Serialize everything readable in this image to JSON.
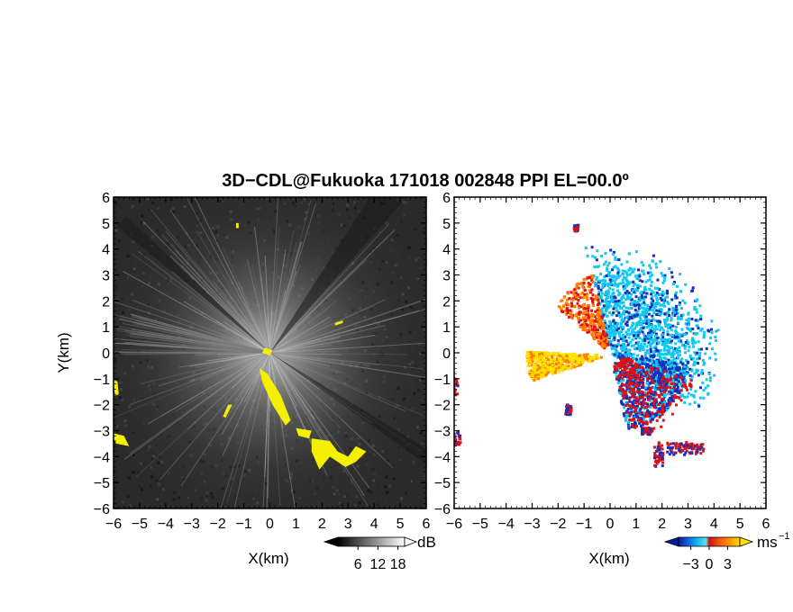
{
  "title": "3D−CDL@Fukuoka 171018 002848 PPI EL=00.0º",
  "chart_data": [
    {
      "type": "heatmap",
      "panel": "left",
      "quantity": "SNR",
      "xlabel": "X(km)",
      "ylabel": "Y(km)",
      "xlim": [
        -6,
        6
      ],
      "ylim": [
        -6,
        6
      ],
      "xticks": [
        "−6",
        "−5",
        "−4",
        "−3",
        "−2",
        "−1",
        "0",
        "1",
        "2",
        "3",
        "4",
        "5",
        "6"
      ],
      "yticks": [
        "6",
        "5",
        "4",
        "3",
        "2",
        "1",
        "0",
        "−1",
        "−2",
        "−3",
        "−4",
        "−5",
        "−6"
      ],
      "colorbar": {
        "colormap": "grayscale",
        "ticks": [
          "6",
          "12",
          "18"
        ],
        "tick_values": [
          6,
          12,
          18
        ],
        "range": [
          0,
          20
        ],
        "unit": "dB",
        "extend": "both"
      },
      "background_color": "#2a2a2a",
      "highlight_color": "#f5f000"
    },
    {
      "type": "heatmap",
      "panel": "right",
      "quantity": "radial velocity",
      "xlabel": "X(km)",
      "ylabel": "",
      "xlim": [
        -6,
        6
      ],
      "ylim": [
        -6,
        6
      ],
      "xticks": [
        "−6",
        "−5",
        "−4",
        "−3",
        "−2",
        "−1",
        "0",
        "1",
        "2",
        "3",
        "4",
        "5",
        "6"
      ],
      "yticks": [
        "6",
        "5",
        "4",
        "3",
        "2",
        "1",
        "0",
        "−1",
        "−2",
        "−3",
        "−4",
        "−5",
        "−6"
      ],
      "colorbar": {
        "colormap": "blue-cyan-red-orange-yellow",
        "ticks": [
          "−3",
          "0",
          "3"
        ],
        "tick_values": [
          -3,
          0,
          3
        ],
        "range": [
          -5,
          5
        ],
        "unit": "ms",
        "unit_exponent": "−1",
        "extend": "both"
      },
      "colors": {
        "negative_strong": "#1030c0",
        "negative_weak": "#10c8f0",
        "positive_weak": "#e01010",
        "positive_strong": "#ff7f00",
        "positive_max": "#ffe000"
      }
    }
  ]
}
